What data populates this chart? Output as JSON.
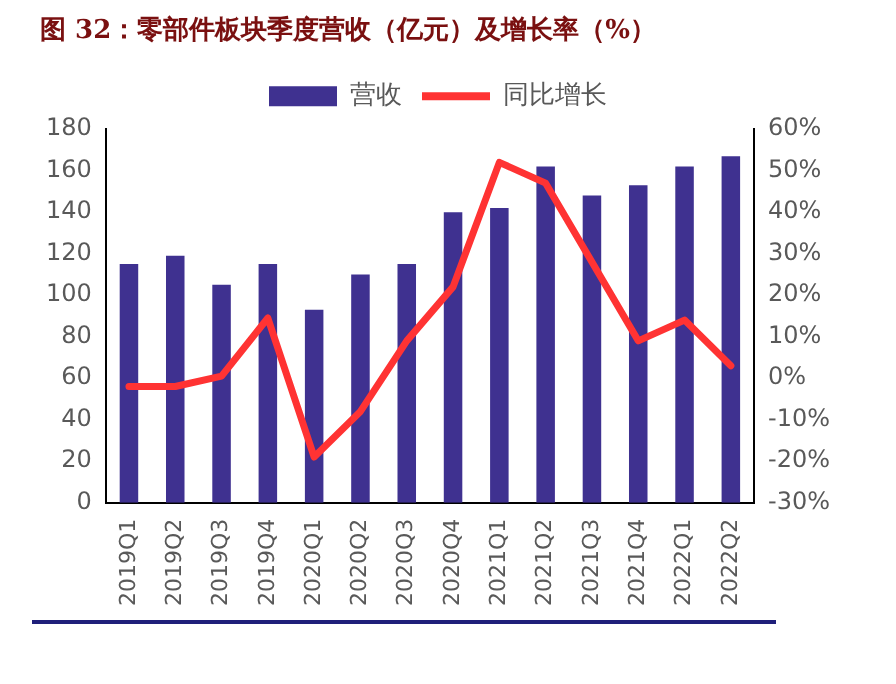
{
  "chart_data": {
    "type": "bar",
    "title": "图 32：零部件板块季度营收（亿元）及增长率（%）",
    "categories": [
      "2019Q1",
      "2019Q2",
      "2019Q3",
      "2019Q4",
      "2020Q1",
      "2020Q2",
      "2020Q3",
      "2020Q4",
      "2021Q1",
      "2021Q2",
      "2021Q3",
      "2021Q4",
      "2022Q1",
      "2022Q2"
    ],
    "series": [
      {
        "name": "营收",
        "color": "#3f3190",
        "values": [
          115,
          119,
          105,
          115,
          93,
          110,
          115,
          140,
          142,
          162,
          148,
          153,
          162,
          167
        ]
      },
      {
        "name": "同比增长",
        "type": "line",
        "axis": "y2",
        "color": "#ff3333",
        "values": [
          -2,
          -2,
          0.5,
          14.5,
          -19,
          -8,
          9,
          22,
          52,
          47,
          28,
          9,
          14,
          3
        ]
      }
    ],
    "ylim": [
      0,
      180
    ],
    "yticks": [
      0,
      20,
      40,
      60,
      80,
      100,
      120,
      140,
      160,
      180
    ],
    "y2lim": [
      -30,
      60
    ],
    "y2ticks": [
      {
        "value": -30,
        "label": "-30%"
      },
      {
        "value": -20,
        "label": "-20%"
      },
      {
        "value": -10,
        "label": "-10%"
      },
      {
        "value": 0,
        "label": "0%"
      },
      {
        "value": 10,
        "label": "10%"
      },
      {
        "value": 20,
        "label": "20%"
      },
      {
        "value": 30,
        "label": "30%"
      },
      {
        "value": 40,
        "label": "40%"
      },
      {
        "value": 50,
        "label": "50%"
      },
      {
        "value": 60,
        "label": "60%"
      }
    ],
    "grid": false,
    "legend": "top",
    "marker": "none"
  }
}
